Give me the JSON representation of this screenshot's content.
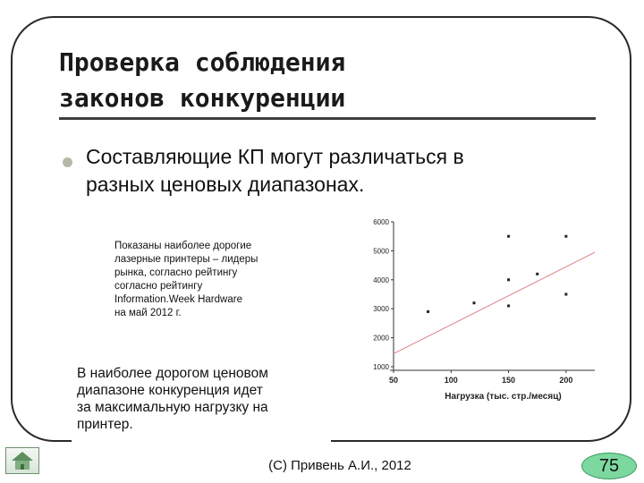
{
  "slide": {
    "title_lines": [
      "Проверка соблюдения",
      "законов конкуренции"
    ],
    "bullet_lines": [
      "Составляющие КП могут различаться в",
      "разных ценовых диапазонах."
    ],
    "note_lines": [
      "Показаны наиболее дорогие",
      "лазерные принтеры – лидеры",
      "рынка, согласно рейтингу",
      "согласно рейтингу",
      "Information.Week Hardware",
      "на май 2012 г."
    ],
    "callout_lines": [
      "В наиболее дорогом ценовом",
      "диапазоне конкуренция идет",
      "за максимальную нагрузку на",
      "принтер."
    ],
    "footer": "(С) Привень А.И., 2012",
    "page_number": "75",
    "home_icon": "home-icon",
    "bullet_color": "#b8b8a8",
    "badge_color": "#7dd8a0"
  },
  "chart_data": {
    "type": "scatter",
    "x": [
      80,
      120,
      150,
      150,
      150,
      175,
      200,
      200
    ],
    "y": [
      2900,
      3200,
      3100,
      4000,
      5500,
      4200,
      3500,
      5500
    ],
    "xlabel": "Нагрузка (тыс. стр./месяц)",
    "ylabel": "",
    "xticks": [
      "50",
      "100",
      "150",
      "200"
    ],
    "yticks": [
      "1000",
      "2000",
      "3000",
      "4000",
      "5000",
      "6000"
    ],
    "xlim": [
      50,
      225
    ],
    "ylim": [
      1000,
      6000
    ],
    "grid": false,
    "trendline": {
      "x": [
        50,
        225
      ],
      "y": [
        1450,
        4950
      ],
      "color": "#e08080"
    },
    "point_color": "#222222"
  }
}
